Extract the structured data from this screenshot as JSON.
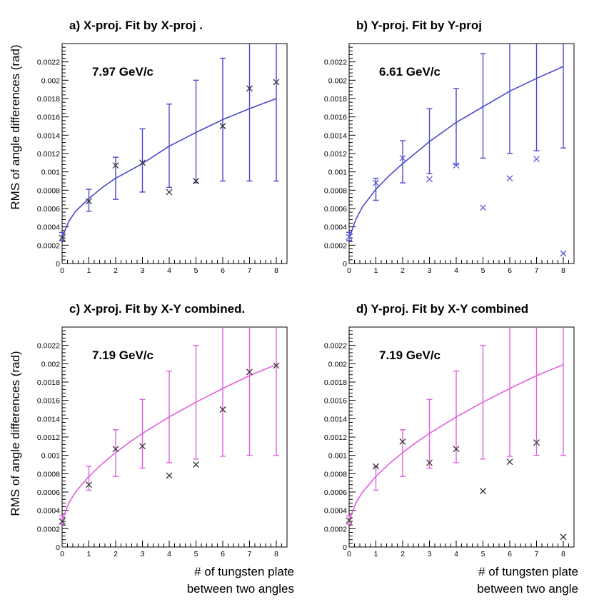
{
  "figure": {
    "ylabel": "RMS of angle differences   (rad)",
    "xlabel_left": [
      "# of tungsten plate",
      "between two angles"
    ],
    "xlabel_right": [
      "# of tungsten plate",
      "between two angle"
    ]
  },
  "chart_data": [
    {
      "type": "scatter",
      "title": "a)  X-proj.  Fit by X-proj .",
      "annotation": "7.97 GeV/c",
      "xlim": [
        0,
        8.4
      ],
      "ylim": [
        0,
        0.0024
      ],
      "x_ticks": [
        0,
        1,
        2,
        3,
        4,
        5,
        6,
        7,
        8
      ],
      "y_ticks": [
        0,
        0.0002,
        0.0004,
        0.0006,
        0.0008,
        0.001,
        0.0012,
        0.0014,
        0.0016,
        0.0018,
        0.002,
        0.0022
      ],
      "y_tick_labels": [
        "0",
        "0.0002",
        "0.0004",
        "0.0006",
        "0.0008",
        "0.001",
        "0.0012",
        "0.0014",
        "0.0016",
        "0.0018",
        "0.002",
        "0.0022"
      ],
      "fit_color": "#4a4acc",
      "marker_color": "#333333",
      "fit": [
        [
          0,
          0.00029
        ],
        [
          0.25,
          0.00046
        ],
        [
          0.5,
          0.00057
        ],
        [
          1,
          0.00071
        ],
        [
          1.5,
          0.00083
        ],
        [
          2,
          0.00093
        ],
        [
          2.5,
          0.00101
        ],
        [
          3,
          0.00109
        ],
        [
          4,
          0.00128
        ],
        [
          5,
          0.00143
        ],
        [
          6,
          0.00157
        ],
        [
          7,
          0.00169
        ],
        [
          8,
          0.0018
        ]
      ],
      "error_bars": [
        [
          0,
          0.00025,
          0.00034
        ],
        [
          1,
          0.00057,
          0.00081
        ],
        [
          2,
          0.0007,
          0.00116
        ],
        [
          3,
          0.00078,
          0.00147
        ],
        [
          4,
          0.00083,
          0.00174
        ],
        [
          5,
          0.00088,
          0.002
        ],
        [
          6,
          0.0009,
          0.00224
        ],
        [
          7,
          0.0009,
          0.0024
        ],
        [
          8,
          0.0009,
          0.0024
        ]
      ],
      "measured": [
        [
          0,
          0.00028
        ],
        [
          1,
          0.00068
        ],
        [
          2,
          0.00107
        ],
        [
          3,
          0.0011
        ],
        [
          4,
          0.00078
        ],
        [
          5,
          0.0009
        ],
        [
          6,
          0.0015
        ],
        [
          7,
          0.00191
        ],
        [
          8,
          0.00198
        ]
      ]
    },
    {
      "type": "scatter",
      "title": "b) Y-proj. Fit by Y-proj",
      "annotation": "6.61 GeV/c",
      "xlim": [
        0,
        8.4
      ],
      "ylim": [
        0,
        0.0024
      ],
      "x_ticks": [
        0,
        1,
        2,
        3,
        4,
        5,
        6,
        7,
        8
      ],
      "y_ticks": [
        0,
        0.0002,
        0.0004,
        0.0006,
        0.0008,
        0.001,
        0.0012,
        0.0014,
        0.0016,
        0.0018,
        0.002,
        0.0022
      ],
      "y_tick_labels": [
        "0",
        "0.0002",
        "0.0004",
        "0.0006",
        "0.0008",
        "0.001",
        "0.0012",
        "0.0014",
        "0.0016",
        "0.0018",
        "0.002",
        "0.0022"
      ],
      "fit_color": "#4a4acc",
      "marker_color": "#5a5ad6",
      "fit": [
        [
          0,
          0.00028
        ],
        [
          0.25,
          0.00048
        ],
        [
          0.5,
          0.00062
        ],
        [
          1,
          0.00081
        ],
        [
          1.5,
          0.00096
        ],
        [
          2,
          0.00109
        ],
        [
          2.5,
          0.00121
        ],
        [
          3,
          0.00133
        ],
        [
          4,
          0.00154
        ],
        [
          5,
          0.00171
        ],
        [
          6,
          0.00188
        ],
        [
          7,
          0.00202
        ],
        [
          8,
          0.00215
        ]
      ],
      "error_bars": [
        [
          0,
          0.00025,
          0.00034
        ],
        [
          1,
          0.00069,
          0.00093
        ],
        [
          2,
          0.00088,
          0.00134
        ],
        [
          3,
          0.00098,
          0.00169
        ],
        [
          4,
          0.00108,
          0.00191
        ],
        [
          5,
          0.00115,
          0.00229
        ],
        [
          6,
          0.0012,
          0.0024
        ],
        [
          7,
          0.00123,
          0.0024
        ],
        [
          8,
          0.00126,
          0.0024
        ]
      ],
      "measured": [
        [
          0,
          0.00029
        ],
        [
          1,
          0.00088
        ],
        [
          2,
          0.00115
        ],
        [
          3,
          0.00092
        ],
        [
          4,
          0.00107
        ],
        [
          5,
          0.00061
        ],
        [
          6,
          0.00093
        ],
        [
          7,
          0.00114
        ],
        [
          8,
          0.00011
        ]
      ]
    },
    {
      "type": "scatter",
      "title": "c)  X-proj.  Fit by X-Y combined.",
      "annotation": "7.19 GeV/c",
      "xlim": [
        0,
        8.4
      ],
      "ylim": [
        0,
        0.0024
      ],
      "x_ticks": [
        0,
        1,
        2,
        3,
        4,
        5,
        6,
        7,
        8
      ],
      "y_ticks": [
        0,
        0.0002,
        0.0004,
        0.0006,
        0.0008,
        0.001,
        0.0012,
        0.0014,
        0.0016,
        0.0018,
        0.002,
        0.0022
      ],
      "y_tick_labels": [
        "0",
        "0.0002",
        "0.0004",
        "0.0006",
        "0.0008",
        "0.001",
        "0.0012",
        "0.0014",
        "0.0016",
        "0.0018",
        "0.002",
        "0.0022"
      ],
      "fit_color": "#e060e0",
      "marker_color": "#333333",
      "fit": [
        [
          0,
          0.00029
        ],
        [
          0.25,
          0.00048
        ],
        [
          0.5,
          0.0006
        ],
        [
          1,
          0.00077
        ],
        [
          1.5,
          0.00091
        ],
        [
          2,
          0.00103
        ],
        [
          2.5,
          0.00114
        ],
        [
          3,
          0.00124
        ],
        [
          4,
          0.00142
        ],
        [
          5,
          0.00158
        ],
        [
          6,
          0.00173
        ],
        [
          7,
          0.00187
        ],
        [
          8,
          0.00199
        ]
      ],
      "error_bars": [
        [
          0,
          0.00025,
          0.00034
        ],
        [
          1,
          0.00062,
          0.00088
        ],
        [
          2,
          0.00077,
          0.00128
        ],
        [
          3,
          0.00086,
          0.00161
        ],
        [
          4,
          0.00092,
          0.00192
        ],
        [
          5,
          0.00096,
          0.0022
        ],
        [
          6,
          0.00099,
          0.0024
        ],
        [
          7,
          0.001,
          0.0024
        ],
        [
          8,
          0.001,
          0.0024
        ]
      ],
      "measured": [
        [
          0,
          0.00028
        ],
        [
          1,
          0.00068
        ],
        [
          2,
          0.00107
        ],
        [
          3,
          0.0011
        ],
        [
          4,
          0.00078
        ],
        [
          5,
          0.0009
        ],
        [
          6,
          0.0015
        ],
        [
          7,
          0.00191
        ],
        [
          8,
          0.00198
        ]
      ]
    },
    {
      "type": "scatter",
      "title": "d)  Y-proj. Fit by X-Y combined",
      "annotation": "7.19 GeV/c",
      "xlim": [
        0,
        8.4
      ],
      "ylim": [
        0,
        0.0024
      ],
      "x_ticks": [
        0,
        1,
        2,
        3,
        4,
        5,
        6,
        7,
        8
      ],
      "y_ticks": [
        0,
        0.0002,
        0.0004,
        0.0006,
        0.0008,
        0.001,
        0.0012,
        0.0014,
        0.0016,
        0.0018,
        0.002,
        0.0022
      ],
      "y_tick_labels": [
        "0",
        "0.0002",
        "0.0004",
        "0.0006",
        "0.0008",
        "0.001",
        "0.0012",
        "0.0014",
        "0.0016",
        "0.0018",
        "0.002",
        "0.0022"
      ],
      "fit_color": "#e060e0",
      "marker_color": "#333333",
      "fit": [
        [
          0,
          0.00029
        ],
        [
          0.25,
          0.00048
        ],
        [
          0.5,
          0.0006
        ],
        [
          1,
          0.00077
        ],
        [
          1.5,
          0.00091
        ],
        [
          2,
          0.00103
        ],
        [
          2.5,
          0.00114
        ],
        [
          3,
          0.00124
        ],
        [
          4,
          0.00142
        ],
        [
          5,
          0.00158
        ],
        [
          6,
          0.00173
        ],
        [
          7,
          0.00187
        ],
        [
          8,
          0.00199
        ]
      ],
      "error_bars": [
        [
          0,
          0.00025,
          0.00034
        ],
        [
          1,
          0.00062,
          0.00088
        ],
        [
          2,
          0.00077,
          0.00128
        ],
        [
          3,
          0.00086,
          0.00161
        ],
        [
          4,
          0.00092,
          0.00192
        ],
        [
          5,
          0.00096,
          0.0022
        ],
        [
          6,
          0.00099,
          0.0024
        ],
        [
          7,
          0.001,
          0.0024
        ],
        [
          8,
          0.001,
          0.0024
        ]
      ],
      "measured": [
        [
          0,
          0.00029
        ],
        [
          1,
          0.00088
        ],
        [
          2,
          0.00115
        ],
        [
          3,
          0.00092
        ],
        [
          4,
          0.00107
        ],
        [
          5,
          0.00061
        ],
        [
          6,
          0.00093
        ],
        [
          7,
          0.00114
        ],
        [
          8,
          0.00011
        ]
      ]
    }
  ]
}
